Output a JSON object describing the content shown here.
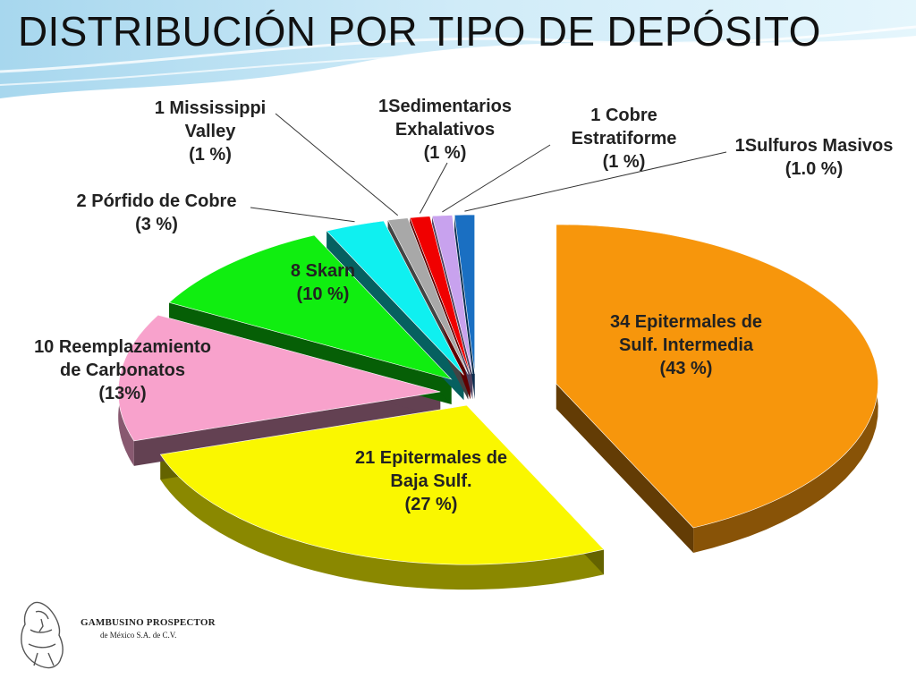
{
  "title": "DISTRIBUCIÓN POR TIPO DE DEPÓSITO",
  "chart_data": {
    "type": "pie",
    "title": "DISTRIBUCIÓN POR TIPO DE DEPÓSITO",
    "three_d": true,
    "slices": [
      {
        "count": 34,
        "percent": 43,
        "color": "#F7960C",
        "label_lines": [
          "34 Epitermales de",
          "Sulf. Intermedia",
          "(43 %)"
        ]
      },
      {
        "count": 21,
        "percent": 27,
        "color": "#FAF700",
        "label_lines": [
          "21 Epitermales de",
          "Baja Sulf.",
          "(27 %)"
        ]
      },
      {
        "count": 10,
        "percent": 13,
        "color": "#F8A2CC",
        "label_lines": [
          "10 Reemplazamiento",
          "de Carbonatos",
          "(13%)"
        ]
      },
      {
        "count": 8,
        "percent": 10,
        "color": "#10EE10",
        "label_lines": [
          "8 Skarn",
          "(10 %)"
        ]
      },
      {
        "count": 2,
        "percent": 3,
        "color": "#0FF0F0",
        "label_lines": [
          "2 Pórfido de Cobre",
          "(3 %)"
        ]
      },
      {
        "count": 1,
        "percent": 1,
        "color": "#A8A8A8",
        "label_lines": [
          "1 Mississippi",
          "Valley",
          "(1 %)"
        ]
      },
      {
        "count": 1,
        "percent": 1,
        "color": "#F00000",
        "label_lines": [
          "1Sedimentarios",
          "Exhalativos",
          "(1 %)"
        ]
      },
      {
        "count": 1,
        "percent": 1,
        "color": "#C8A2EE",
        "label_lines": [
          "1 Cobre",
          "Estratiforme",
          "(1 %)"
        ]
      },
      {
        "count": 1,
        "percent": 1.0,
        "color": "#1A6FC2",
        "label_lines": [
          "1Sulfuros Masivos",
          "(1.0  %)"
        ]
      }
    ],
    "legend": "none"
  },
  "logo": {
    "name": "GAMBUSINO PROSPECTOR",
    "subtitle": "de México S.A. de C.V."
  },
  "colors": {
    "background": "#FFFFFF",
    "wave_accent": "#7FC4E6"
  }
}
